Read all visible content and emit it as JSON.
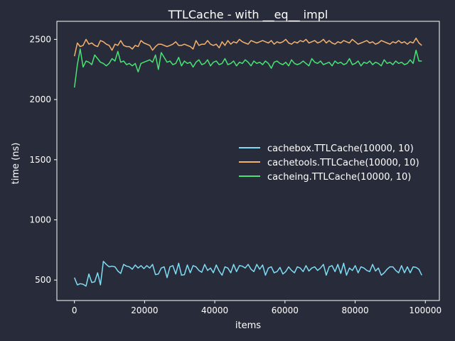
{
  "chart_data": {
    "type": "line",
    "title": "TTLCache - with __eq__ impl",
    "xlabel": "items",
    "ylabel": "time (ns)",
    "xlim": [
      -5000,
      104000
    ],
    "ylim": [
      330,
      2650
    ],
    "x_ticks": [
      0,
      20000,
      40000,
      60000,
      80000,
      100000
    ],
    "y_ticks": [
      500,
      1000,
      1500,
      2000,
      2500
    ],
    "grid": false,
    "legend_position": "center-right",
    "background_color": "#282c3a",
    "series": [
      {
        "name": "cachebox.TTLCache(10000, 10)",
        "color": "#7fdcf4",
        "values": [
          520,
          460,
          470,
          465,
          450,
          550,
          480,
          485,
          560,
          460,
          655,
          630,
          610,
          615,
          610,
          575,
          555,
          630,
          615,
          610,
          590,
          625,
          600,
          620,
          595,
          620,
          600,
          630,
          545,
          550,
          600,
          610,
          520,
          610,
          620,
          550,
          640,
          540,
          545,
          625,
          560,
          620,
          610,
          580,
          565,
          630,
          580,
          600,
          560,
          625,
          575,
          540,
          610,
          600,
          560,
          630,
          570,
          620,
          615,
          600,
          630,
          590,
          570,
          630,
          590,
          625,
          540,
          600,
          610,
          560,
          570,
          605,
          550,
          570,
          610,
          580,
          560,
          610,
          600,
          570,
          620,
          575,
          600,
          610,
          580,
          600,
          630,
          540,
          610,
          620,
          570,
          630,
          555,
          640,
          540,
          600,
          580,
          620,
          560,
          610,
          600,
          580,
          570,
          630,
          575,
          600,
          540,
          560,
          590,
          610,
          610,
          580,
          560,
          620,
          560,
          610,
          560,
          610,
          605,
          590,
          540
        ]
      },
      {
        "name": "cachetools.TTLCache(10000, 10)",
        "color": "#f5b16d",
        "values": [
          2360,
          2470,
          2440,
          2450,
          2500,
          2460,
          2470,
          2450,
          2440,
          2490,
          2480,
          2460,
          2450,
          2410,
          2460,
          2450,
          2490,
          2450,
          2440,
          2440,
          2420,
          2450,
          2440,
          2490,
          2470,
          2460,
          2450,
          2410,
          2440,
          2460,
          2460,
          2450,
          2440,
          2450,
          2460,
          2480,
          2450,
          2450,
          2460,
          2450,
          2440,
          2420,
          2490,
          2450,
          2460,
          2460,
          2490,
          2460,
          2450,
          2460,
          2430,
          2480,
          2450,
          2490,
          2460,
          2480,
          2470,
          2500,
          2480,
          2470,
          2460,
          2490,
          2480,
          2470,
          2480,
          2490,
          2480,
          2470,
          2490,
          2460,
          2480,
          2470,
          2480,
          2500,
          2470,
          2460,
          2480,
          2470,
          2490,
          2480,
          2500,
          2470,
          2480,
          2490,
          2470,
          2480,
          2500,
          2470,
          2490,
          2470,
          2460,
          2480,
          2470,
          2490,
          2480,
          2470,
          2500,
          2480,
          2460,
          2470,
          2480,
          2490,
          2470,
          2480,
          2460,
          2470,
          2490,
          2480,
          2470,
          2460,
          2480,
          2470,
          2490,
          2470,
          2480,
          2460,
          2480,
          2470,
          2510,
          2470,
          2450
        ]
      },
      {
        "name": "cacheing.TTLCache(10000, 10)",
        "color": "#48e374",
        "values": [
          2100,
          2290,
          2420,
          2270,
          2320,
          2310,
          2290,
          2370,
          2340,
          2310,
          2300,
          2280,
          2300,
          2340,
          2320,
          2400,
          2310,
          2320,
          2290,
          2300,
          2280,
          2300,
          2230,
          2300,
          2310,
          2320,
          2330,
          2310,
          2370,
          2250,
          2390,
          2350,
          2310,
          2320,
          2290,
          2300,
          2350,
          2280,
          2320,
          2300,
          2310,
          2270,
          2310,
          2330,
          2290,
          2300,
          2330,
          2280,
          2310,
          2320,
          2290,
          2300,
          2340,
          2290,
          2300,
          2320,
          2280,
          2310,
          2300,
          2330,
          2310,
          2280,
          2320,
          2300,
          2310,
          2290,
          2320,
          2300,
          2260,
          2310,
          2320,
          2300,
          2290,
          2310,
          2280,
          2330,
          2300,
          2290,
          2300,
          2320,
          2300,
          2280,
          2340,
          2310,
          2300,
          2320,
          2290,
          2300,
          2310,
          2280,
          2320,
          2300,
          2310,
          2290,
          2300,
          2340,
          2290,
          2300,
          2320,
          2280,
          2310,
          2300,
          2320,
          2290,
          2310,
          2300,
          2280,
          2330,
          2300,
          2310,
          2290,
          2320,
          2300,
          2310,
          2290,
          2300,
          2330,
          2300,
          2410,
          2320,
          2320
        ]
      }
    ]
  }
}
